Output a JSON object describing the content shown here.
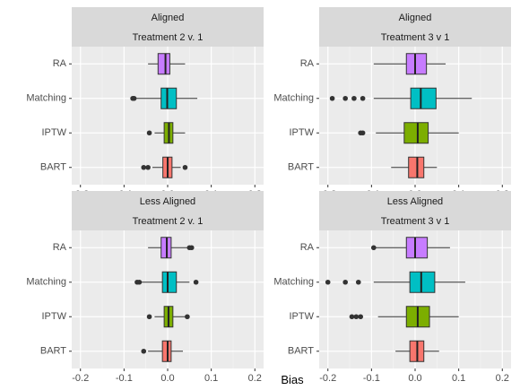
{
  "xlabel": "Bias",
  "chart_data": {
    "type": "box",
    "xlabel": "Bias",
    "xlim": [
      -0.22,
      0.22
    ],
    "x_ticks": [
      -0.2,
      -0.1,
      0.0,
      0.1,
      0.2
    ],
    "x_tick_labels": [
      "-0.2",
      "-0.1",
      "0.0",
      "0.1",
      "0.2"
    ],
    "categories": [
      "RA",
      "Matching",
      "IPTW",
      "BART"
    ],
    "colors": {
      "RA": "#c77cff",
      "Matching": "#00bfc4",
      "IPTW": "#7cae00",
      "BART": "#f8766d"
    },
    "grid": true,
    "panels": [
      {
        "row_label": "Aligned",
        "col_label": "Treatment 2 v. 1",
        "boxes": [
          {
            "method": "RA",
            "whisker_low": -0.045,
            "q1": -0.022,
            "median": -0.005,
            "q3": 0.005,
            "whisker_high": 0.04,
            "outliers": []
          },
          {
            "method": "Matching",
            "whisker_low": -0.075,
            "q1": -0.015,
            "median": -0.001,
            "q3": 0.02,
            "whisker_high": 0.068,
            "outliers": [
              -0.08,
              -0.077
            ]
          },
          {
            "method": "IPTW",
            "whisker_low": -0.03,
            "q1": -0.008,
            "median": 0.003,
            "q3": 0.012,
            "whisker_high": 0.04,
            "outliers": [
              -0.042
            ]
          },
          {
            "method": "BART",
            "whisker_low": -0.035,
            "q1": -0.011,
            "median": 0.0,
            "q3": 0.01,
            "whisker_high": 0.03,
            "outliers": [
              -0.055,
              -0.045,
              0.04
            ]
          }
        ]
      },
      {
        "row_label": "Aligned",
        "col_label": "Treatment 3 v 1",
        "boxes": [
          {
            "method": "RA",
            "whisker_low": -0.095,
            "q1": -0.02,
            "median": 0.0,
            "q3": 0.026,
            "whisker_high": 0.07,
            "outliers": []
          },
          {
            "method": "Matching",
            "whisker_low": -0.095,
            "q1": -0.01,
            "median": 0.013,
            "q3": 0.048,
            "whisker_high": 0.13,
            "outliers": [
              -0.19,
              -0.16,
              -0.14,
              -0.12
            ]
          },
          {
            "method": "IPTW",
            "whisker_low": -0.09,
            "q1": -0.025,
            "median": 0.006,
            "q3": 0.03,
            "whisker_high": 0.1,
            "outliers": [
              -0.125,
              -0.12
            ]
          },
          {
            "method": "BART",
            "whisker_low": -0.055,
            "q1": -0.015,
            "median": 0.005,
            "q3": 0.02,
            "whisker_high": 0.05,
            "outliers": []
          }
        ]
      },
      {
        "row_label": "Less Aligned",
        "col_label": "Treatment 2 v. 1",
        "boxes": [
          {
            "method": "RA",
            "whisker_low": -0.045,
            "q1": -0.015,
            "median": -0.002,
            "q3": 0.008,
            "whisker_high": 0.045,
            "outliers": [
              0.05,
              0.055
            ]
          },
          {
            "method": "Matching",
            "whisker_low": -0.06,
            "q1": -0.012,
            "median": 0.0,
            "q3": 0.02,
            "whisker_high": 0.05,
            "outliers": [
              -0.07,
              -0.065,
              0.065
            ]
          },
          {
            "method": "IPTW",
            "whisker_low": -0.03,
            "q1": -0.008,
            "median": 0.002,
            "q3": 0.012,
            "whisker_high": 0.04,
            "outliers": [
              -0.042,
              0.045
            ]
          },
          {
            "method": "BART",
            "whisker_low": -0.045,
            "q1": -0.012,
            "median": 0.0,
            "q3": 0.008,
            "whisker_high": 0.035,
            "outliers": [
              -0.055
            ]
          }
        ]
      },
      {
        "row_label": "Less Aligned",
        "col_label": "Treatment 3 v 1",
        "boxes": [
          {
            "method": "RA",
            "whisker_low": -0.09,
            "q1": -0.02,
            "median": 0.0,
            "q3": 0.028,
            "whisker_high": 0.08,
            "outliers": [
              -0.095
            ]
          },
          {
            "method": "Matching",
            "whisker_low": -0.095,
            "q1": -0.012,
            "median": 0.014,
            "q3": 0.045,
            "whisker_high": 0.115,
            "outliers": [
              -0.2,
              -0.16,
              -0.13
            ]
          },
          {
            "method": "IPTW",
            "whisker_low": -0.085,
            "q1": -0.02,
            "median": 0.006,
            "q3": 0.033,
            "whisker_high": 0.1,
            "outliers": [
              -0.145,
              -0.135,
              -0.125
            ]
          },
          {
            "method": "BART",
            "whisker_low": -0.045,
            "q1": -0.012,
            "median": 0.005,
            "q3": 0.02,
            "whisker_high": 0.055,
            "outliers": []
          }
        ]
      }
    ]
  }
}
